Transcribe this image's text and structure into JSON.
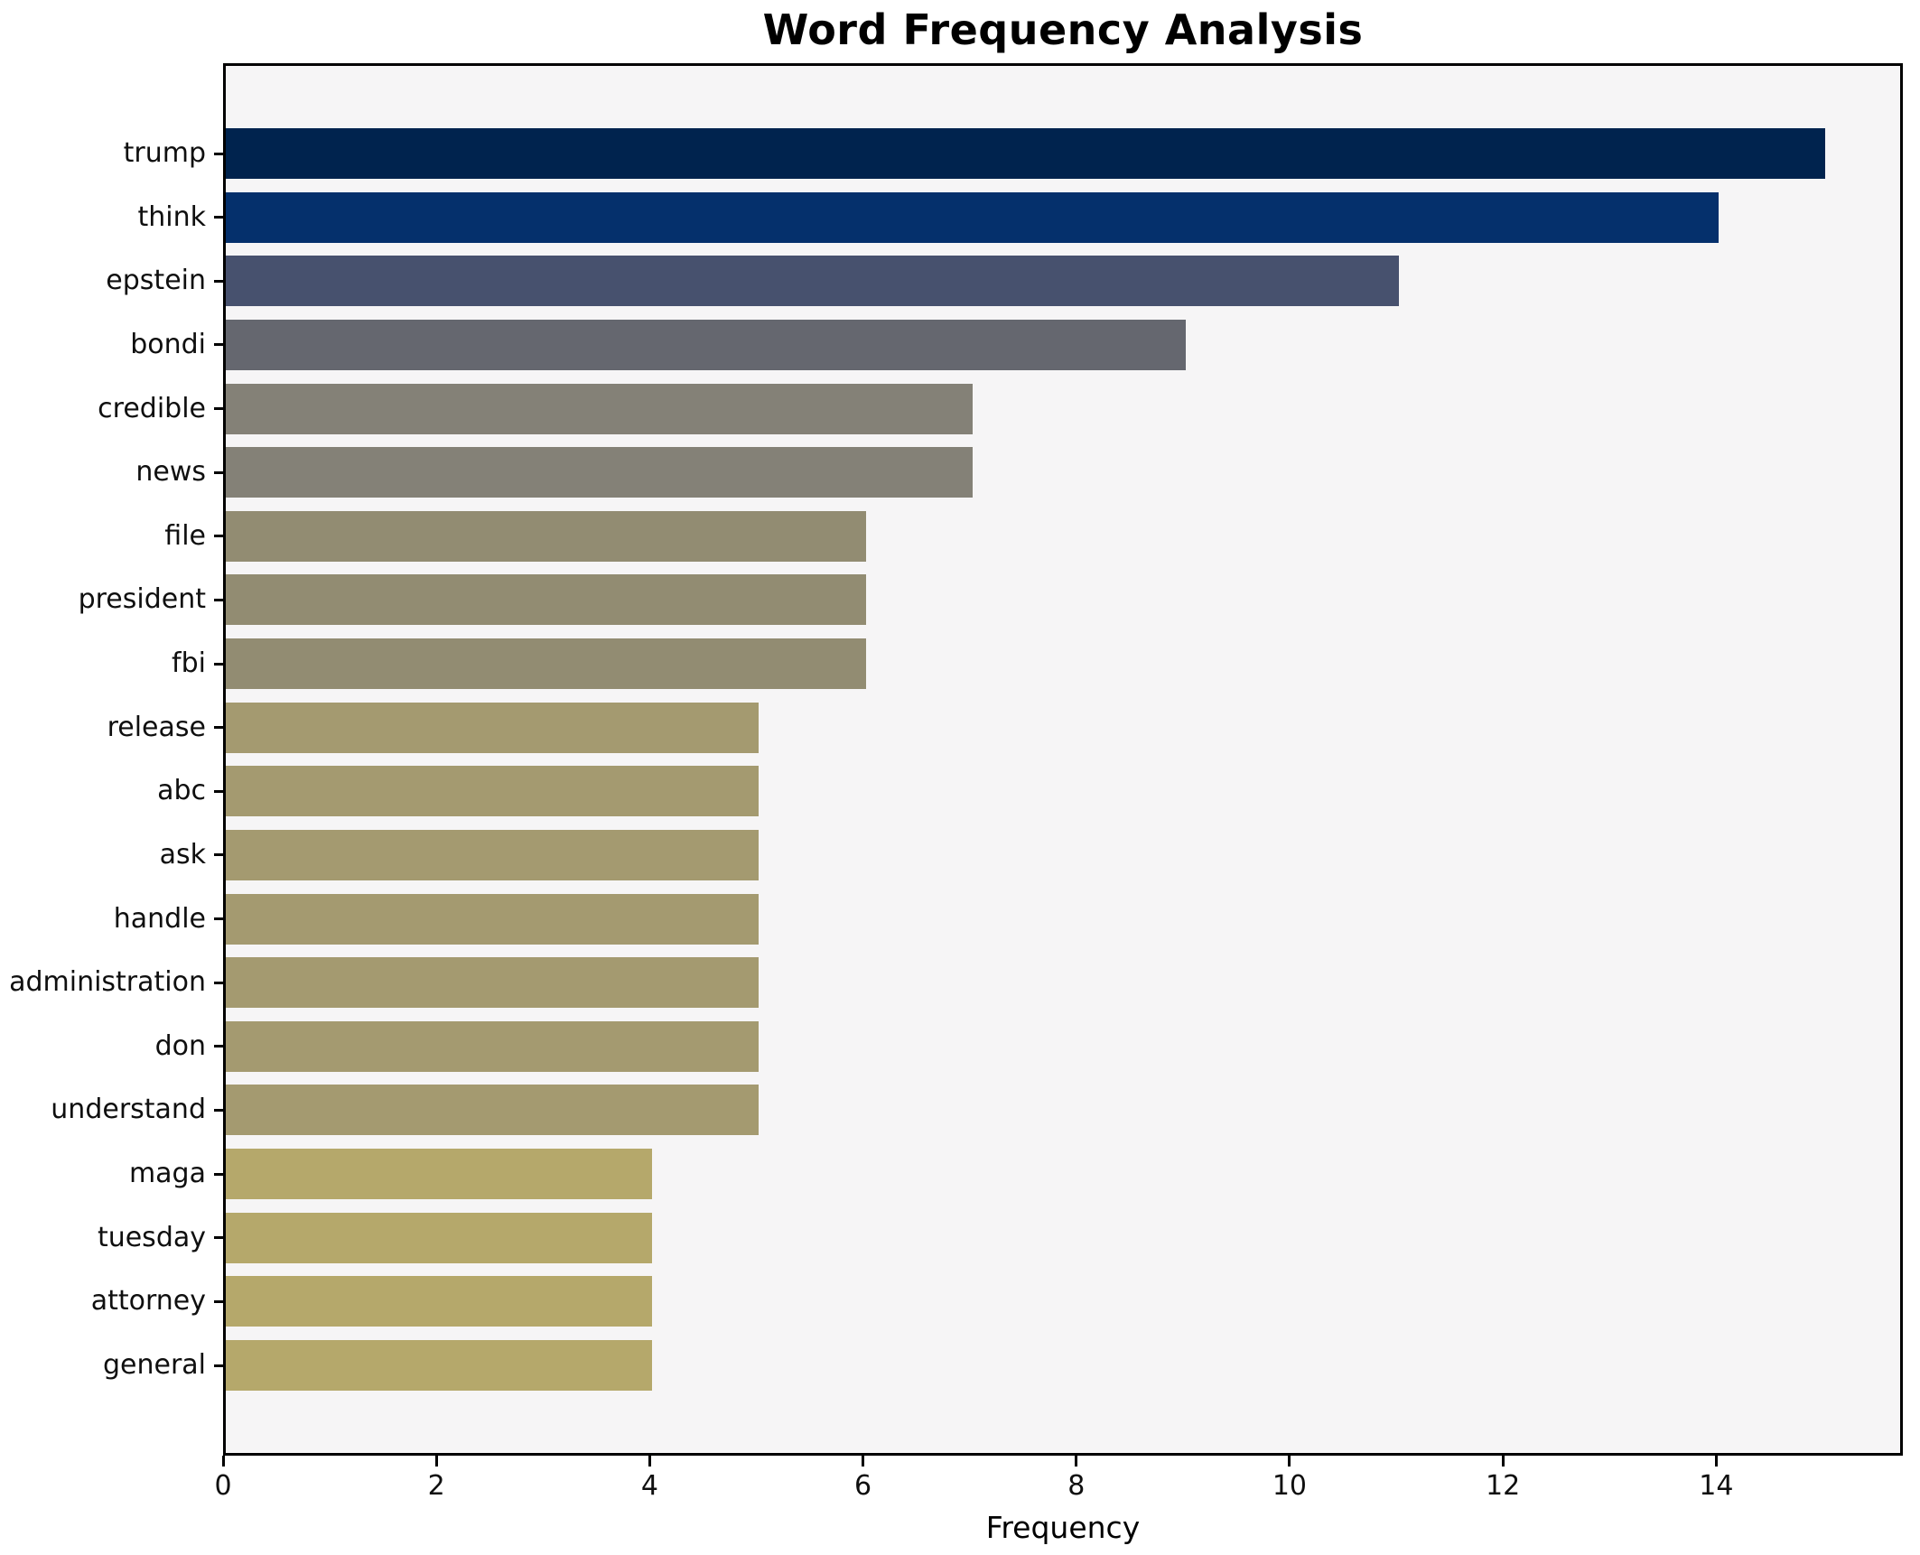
{
  "chart_data": {
    "type": "bar",
    "orientation": "horizontal",
    "title": "Word Frequency Analysis",
    "xlabel": "Frequency",
    "ylabel": "",
    "categories": [
      "trump",
      "think",
      "epstein",
      "bondi",
      "credible",
      "news",
      "file",
      "president",
      "fbi",
      "release",
      "abc",
      "ask",
      "handle",
      "administration",
      "don",
      "understand",
      "maga",
      "tuesday",
      "attorney",
      "general"
    ],
    "values": [
      15,
      14,
      11,
      9,
      7,
      7,
      6,
      6,
      6,
      5,
      5,
      5,
      5,
      5,
      5,
      5,
      4,
      4,
      4,
      4
    ],
    "bar_colors": [
      "#00234E",
      "#05306C",
      "#47516E",
      "#65676F",
      "#848177",
      "#848177",
      "#928C72",
      "#928C72",
      "#928C72",
      "#A49A70",
      "#A49A70",
      "#A49A70",
      "#A49A70",
      "#A49A70",
      "#A49A70",
      "#A49A70",
      "#B5A86B",
      "#B5A86B",
      "#B5A86B",
      "#B5A86B"
    ],
    "x_ticks": [
      0,
      2,
      4,
      6,
      8,
      10,
      12,
      14
    ],
    "xlim": [
      0,
      15.75
    ],
    "grid": false,
    "legend": false,
    "colormap": "cividis-reversed-by-value",
    "plot_bg": "#F6F5F6",
    "fig_bg": "#FFFFFF",
    "spine_color": "#000000",
    "text_color": "#0F0F0F"
  }
}
